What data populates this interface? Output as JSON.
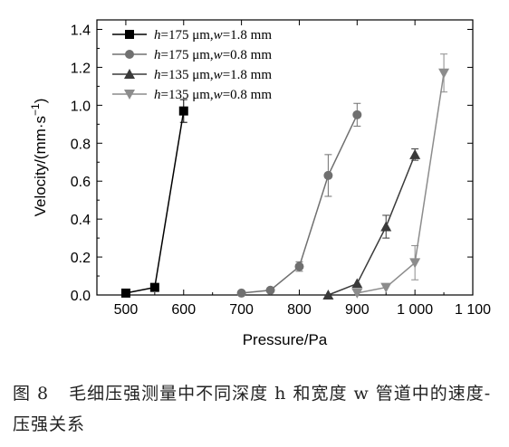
{
  "chart_data": {
    "type": "line",
    "title": "",
    "xlabel": "Pressure/Pa",
    "ylabel": "Velocity/(mm·s",
    "ylabel_sup": "−1",
    "ylabel_close": ")",
    "xlim": [
      450,
      1100
    ],
    "ylim": [
      0,
      1.45
    ],
    "xticks": [
      500,
      600,
      700,
      800,
      900,
      1000,
      1100
    ],
    "xtick_labels": [
      "500",
      "600",
      "700",
      "800",
      "900",
      "1 000",
      "1 100"
    ],
    "yticks": [
      0,
      0.2,
      0.4,
      0.6,
      0.8,
      1.0,
      1.2,
      1.4
    ],
    "ytick_labels": [
      "0.0",
      "0.2",
      "0.4",
      "0.6",
      "0.8",
      "1.0",
      "1.2",
      "1.4"
    ],
    "grid": false,
    "legend_position": "top-left",
    "series": [
      {
        "h": "175",
        "w": "1.8",
        "marker": "square",
        "color": "#000000",
        "x": [
          500,
          550,
          600
        ],
        "y": [
          0.01,
          0.04,
          0.97
        ],
        "err": [
          0,
          0,
          0.06
        ]
      },
      {
        "h": "175",
        "w": "0.8",
        "marker": "circle",
        "color": "#707070",
        "x": [
          700,
          750,
          800,
          850,
          900
        ],
        "y": [
          0.01,
          0.025,
          0.15,
          0.63,
          0.95
        ],
        "err": [
          0,
          0,
          0.025,
          0.11,
          0.06
        ]
      },
      {
        "h": "135",
        "w": "1.8",
        "marker": "triangle-up",
        "color": "#3a3a3a",
        "x": [
          850,
          900,
          950,
          1000
        ],
        "y": [
          0.0,
          0.06,
          0.36,
          0.74
        ],
        "err": [
          0,
          0,
          0.06,
          0.03
        ]
      },
      {
        "h": "135",
        "w": "0.8",
        "marker": "triangle-down",
        "color": "#8c8c8c",
        "x": [
          900,
          950,
          1000,
          1050
        ],
        "y": [
          0.01,
          0.04,
          0.17,
          1.17
        ],
        "err": [
          0,
          0,
          0.09,
          0.1
        ]
      }
    ]
  },
  "legend": {
    "var_h": "h",
    "var_w": "w",
    "unit_h": " μm,",
    "unit_w": " mm"
  },
  "caption": {
    "figure_number": "图 8",
    "text": "毛细压强测量中不同深度 h 和宽度 w 管道中的速度-压强关系"
  }
}
